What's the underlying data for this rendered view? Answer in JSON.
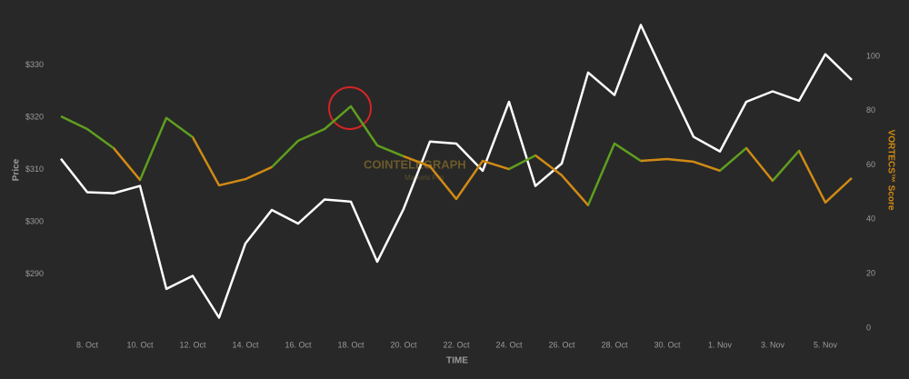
{
  "chart_data": {
    "type": "line",
    "x_title": "TIME",
    "y_title": "Price",
    "y2_title": "VORTECS™ Score",
    "watermark": [
      "COINTELEGRAPH",
      "Markets Pro"
    ],
    "categories": [
      null,
      "8. Oct",
      null,
      "10. Oct",
      null,
      "12. Oct",
      null,
      "14. Oct",
      null,
      "16. Oct",
      null,
      "18. Oct",
      null,
      "20. Oct",
      null,
      "22. Oct",
      null,
      "24. Oct",
      null,
      "26. Oct",
      null,
      "28. Oct",
      null,
      "30. Oct",
      null,
      "1. Nov",
      null,
      "3. Nov",
      null,
      "5. Nov",
      null
    ],
    "ylim": [
      279.7,
      339.0
    ],
    "yticks": [
      {
        "value": 290,
        "label": "$290"
      },
      {
        "value": 300,
        "label": "$300"
      },
      {
        "value": 310,
        "label": "$310"
      },
      {
        "value": 320,
        "label": "$320"
      },
      {
        "value": 330,
        "label": "$330"
      }
    ],
    "y2lim": [
      0,
      114.0
    ],
    "y2ticks": [
      0,
      20,
      40,
      60,
      80,
      100
    ],
    "series": [
      {
        "color": "#ffffff",
        "values": [
          312.1,
          305.7,
          305.5,
          306.9,
          287.2,
          289.7,
          281.7,
          295.9,
          302.3,
          299.7,
          304.3,
          303.9,
          292.4,
          302.5,
          315.4,
          315.0,
          309.8,
          323.0,
          306.9,
          311.2,
          328.6,
          324.3,
          337.7,
          326.9,
          316.3,
          313.5,
          323.0,
          325.0,
          323.2,
          332.1,
          327.2
        ]
      },
      {
        "axis": "y2",
        "segment_colors": [
          "#5f9e1e",
          "#5f9e1e",
          "#d08a14",
          "#5f9e1e",
          "#5f9e1e",
          "#d08a14",
          "#d08a14",
          "#d08a14",
          "#5f9e1e",
          "#5f9e1e",
          "#5f9e1e",
          "#5f9e1e",
          "#5f9e1e",
          "#d08a14",
          "#d08a14",
          "#d08a14",
          "#d08a14",
          "#5f9e1e",
          "#d08a14",
          "#d08a14",
          "#5f9e1e",
          "#5f9e1e",
          "#d08a14",
          "#d08a14",
          "#d08a14",
          "#5f9e1e",
          "#d08a14",
          "#5f9e1e",
          "#d08a14",
          "#d08a14"
        ],
        "values": [
          77.9,
          73.2,
          66.2,
          54.5,
          77.3,
          70.2,
          52.5,
          54.8,
          59.2,
          68.9,
          73.2,
          81.6,
          67.2,
          63.2,
          59.5,
          47.5,
          61.5,
          58.5,
          63.5,
          56.2,
          45.2,
          67.9,
          61.5,
          62.2,
          61.2,
          57.9,
          66.2,
          54.2,
          65.2,
          46.2,
          55.2
        ]
      }
    ],
    "y2_title_color": "#d08a14"
  }
}
